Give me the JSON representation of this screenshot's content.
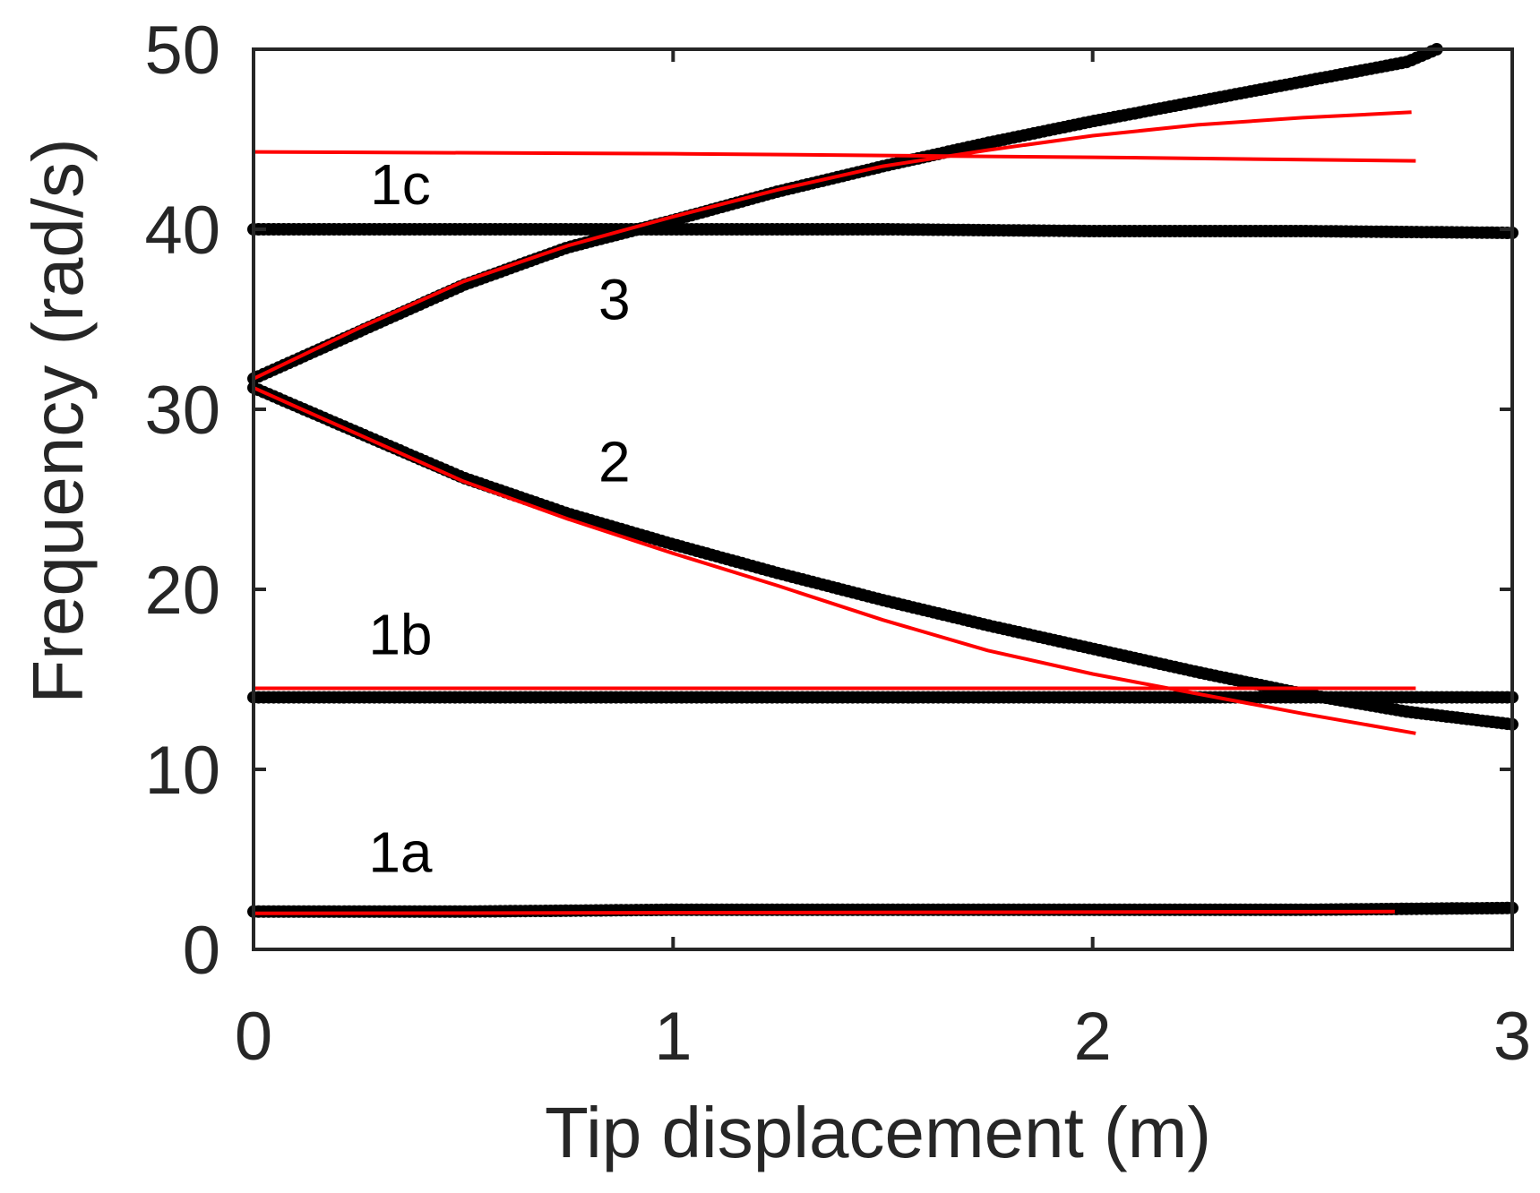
{
  "chart_data": {
    "type": "line",
    "xlabel": "Tip displacement (m)",
    "ylabel": "Frequency (rad/s)",
    "xlim": [
      0,
      3
    ],
    "ylim": [
      0,
      50
    ],
    "xticks": [
      "0",
      "1",
      "2",
      "3"
    ],
    "yticks": [
      "0",
      "10",
      "20",
      "30",
      "40",
      "50"
    ],
    "grid": false,
    "colors": {
      "markers": "#000000",
      "lines": "#ff0000",
      "axis": "#262626"
    },
    "annotations": [
      {
        "text": "1c",
        "x": 0.35,
        "y": 42.5
      },
      {
        "text": "3",
        "x": 0.86,
        "y": 36.1
      },
      {
        "text": "2",
        "x": 0.86,
        "y": 27.1
      },
      {
        "text": "1b",
        "x": 0.35,
        "y": 17.5
      },
      {
        "text": "1a",
        "x": 0.35,
        "y": 5.4
      }
    ],
    "series": [
      {
        "style": "markers",
        "x": [
          0,
          0.5,
          1,
          1.5,
          2,
          2.5,
          3
        ],
        "y": [
          2.1,
          2.1,
          2.2,
          2.2,
          2.2,
          2.2,
          2.3
        ]
      },
      {
        "style": "markers",
        "x": [
          0,
          0.5,
          1,
          1.5,
          2,
          2.5,
          3
        ],
        "y": [
          14.0,
          14.0,
          14.0,
          14.0,
          14.0,
          14.0,
          14.0
        ]
      },
      {
        "style": "markers",
        "x": [
          0,
          0.5,
          1,
          1.5,
          2,
          2.5,
          3
        ],
        "y": [
          40.0,
          40.0,
          40.0,
          40.0,
          39.9,
          39.9,
          39.8
        ]
      },
      {
        "style": "markers",
        "x": [
          0,
          0.25,
          0.5,
          0.75,
          1,
          1.25,
          1.5,
          1.75,
          2,
          2.25,
          2.5,
          2.75,
          2.82
        ],
        "y": [
          31.7,
          34.3,
          36.9,
          39.0,
          40.5,
          42.1,
          43.5,
          44.8,
          46.0,
          47.1,
          48.2,
          49.3,
          50.0
        ]
      },
      {
        "style": "markers",
        "x": [
          0,
          0.25,
          0.5,
          0.75,
          1,
          1.25,
          1.5,
          1.75,
          2,
          2.25,
          2.5,
          2.75,
          3
        ],
        "y": [
          31.2,
          28.7,
          26.2,
          24.2,
          22.5,
          20.9,
          19.4,
          18.0,
          16.7,
          15.4,
          14.2,
          13.2,
          12.5
        ]
      },
      {
        "style": "line",
        "x": [
          0,
          2.72
        ],
        "y": [
          2.0,
          2.1
        ]
      },
      {
        "style": "line",
        "x": [
          0,
          2.77
        ],
        "y": [
          14.5,
          14.5
        ]
      },
      {
        "style": "line",
        "x": [
          0,
          1,
          1.5,
          2,
          2.77
        ],
        "y": [
          44.3,
          44.2,
          44.1,
          44.0,
          43.8
        ]
      },
      {
        "style": "line",
        "x": [
          0,
          0.25,
          0.5,
          0.75,
          1,
          1.25,
          1.5,
          1.75,
          2,
          2.25,
          2.5,
          2.76
        ],
        "y": [
          31.7,
          34.5,
          37.1,
          39.1,
          40.7,
          42.2,
          43.5,
          44.4,
          45.2,
          45.8,
          46.2,
          46.5
        ]
      },
      {
        "style": "line",
        "x": [
          0,
          0.25,
          0.5,
          0.75,
          1,
          1.25,
          1.5,
          1.75,
          2,
          2.25,
          2.5,
          2.77
        ],
        "y": [
          31.2,
          28.6,
          26.0,
          23.9,
          22.0,
          20.2,
          18.3,
          16.6,
          15.3,
          14.2,
          13.1,
          12.0
        ]
      }
    ]
  }
}
